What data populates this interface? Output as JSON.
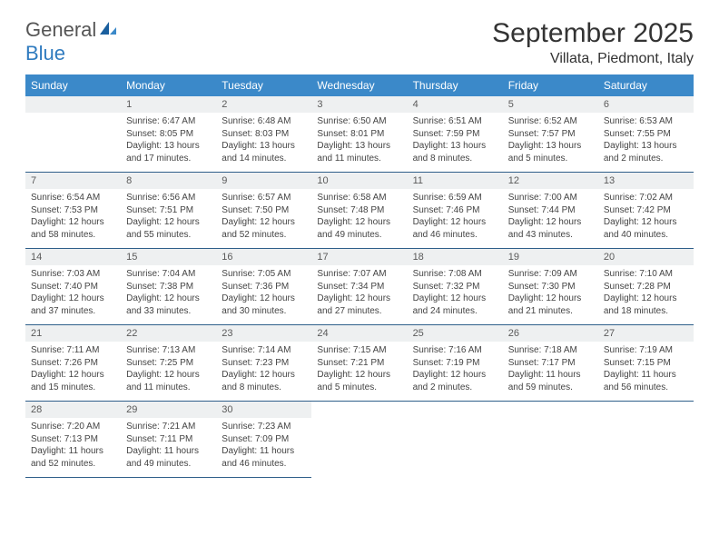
{
  "brand": {
    "part1": "General",
    "part2": "Blue"
  },
  "title": "September 2025",
  "location": "Villata, Piedmont, Italy",
  "theme": {
    "header_bg": "#3b89c9",
    "header_text": "#ffffff",
    "daynum_bg": "#eef0f1",
    "daynum_text": "#5a5a5a",
    "border_color": "#2f5f8a",
    "body_text": "#444444",
    "brand_gray": "#555555",
    "brand_blue": "#2f7bbf"
  },
  "weekdays": [
    "Sunday",
    "Monday",
    "Tuesday",
    "Wednesday",
    "Thursday",
    "Friday",
    "Saturday"
  ],
  "weeks": [
    [
      null,
      {
        "d": "1",
        "sr": "Sunrise: 6:47 AM",
        "ss": "Sunset: 8:05 PM",
        "dl": "Daylight: 13 hours and 17 minutes."
      },
      {
        "d": "2",
        "sr": "Sunrise: 6:48 AM",
        "ss": "Sunset: 8:03 PM",
        "dl": "Daylight: 13 hours and 14 minutes."
      },
      {
        "d": "3",
        "sr": "Sunrise: 6:50 AM",
        "ss": "Sunset: 8:01 PM",
        "dl": "Daylight: 13 hours and 11 minutes."
      },
      {
        "d": "4",
        "sr": "Sunrise: 6:51 AM",
        "ss": "Sunset: 7:59 PM",
        "dl": "Daylight: 13 hours and 8 minutes."
      },
      {
        "d": "5",
        "sr": "Sunrise: 6:52 AM",
        "ss": "Sunset: 7:57 PM",
        "dl": "Daylight: 13 hours and 5 minutes."
      },
      {
        "d": "6",
        "sr": "Sunrise: 6:53 AM",
        "ss": "Sunset: 7:55 PM",
        "dl": "Daylight: 13 hours and 2 minutes."
      }
    ],
    [
      {
        "d": "7",
        "sr": "Sunrise: 6:54 AM",
        "ss": "Sunset: 7:53 PM",
        "dl": "Daylight: 12 hours and 58 minutes."
      },
      {
        "d": "8",
        "sr": "Sunrise: 6:56 AM",
        "ss": "Sunset: 7:51 PM",
        "dl": "Daylight: 12 hours and 55 minutes."
      },
      {
        "d": "9",
        "sr": "Sunrise: 6:57 AM",
        "ss": "Sunset: 7:50 PM",
        "dl": "Daylight: 12 hours and 52 minutes."
      },
      {
        "d": "10",
        "sr": "Sunrise: 6:58 AM",
        "ss": "Sunset: 7:48 PM",
        "dl": "Daylight: 12 hours and 49 minutes."
      },
      {
        "d": "11",
        "sr": "Sunrise: 6:59 AM",
        "ss": "Sunset: 7:46 PM",
        "dl": "Daylight: 12 hours and 46 minutes."
      },
      {
        "d": "12",
        "sr": "Sunrise: 7:00 AM",
        "ss": "Sunset: 7:44 PM",
        "dl": "Daylight: 12 hours and 43 minutes."
      },
      {
        "d": "13",
        "sr": "Sunrise: 7:02 AM",
        "ss": "Sunset: 7:42 PM",
        "dl": "Daylight: 12 hours and 40 minutes."
      }
    ],
    [
      {
        "d": "14",
        "sr": "Sunrise: 7:03 AM",
        "ss": "Sunset: 7:40 PM",
        "dl": "Daylight: 12 hours and 37 minutes."
      },
      {
        "d": "15",
        "sr": "Sunrise: 7:04 AM",
        "ss": "Sunset: 7:38 PM",
        "dl": "Daylight: 12 hours and 33 minutes."
      },
      {
        "d": "16",
        "sr": "Sunrise: 7:05 AM",
        "ss": "Sunset: 7:36 PM",
        "dl": "Daylight: 12 hours and 30 minutes."
      },
      {
        "d": "17",
        "sr": "Sunrise: 7:07 AM",
        "ss": "Sunset: 7:34 PM",
        "dl": "Daylight: 12 hours and 27 minutes."
      },
      {
        "d": "18",
        "sr": "Sunrise: 7:08 AM",
        "ss": "Sunset: 7:32 PM",
        "dl": "Daylight: 12 hours and 24 minutes."
      },
      {
        "d": "19",
        "sr": "Sunrise: 7:09 AM",
        "ss": "Sunset: 7:30 PM",
        "dl": "Daylight: 12 hours and 21 minutes."
      },
      {
        "d": "20",
        "sr": "Sunrise: 7:10 AM",
        "ss": "Sunset: 7:28 PM",
        "dl": "Daylight: 12 hours and 18 minutes."
      }
    ],
    [
      {
        "d": "21",
        "sr": "Sunrise: 7:11 AM",
        "ss": "Sunset: 7:26 PM",
        "dl": "Daylight: 12 hours and 15 minutes."
      },
      {
        "d": "22",
        "sr": "Sunrise: 7:13 AM",
        "ss": "Sunset: 7:25 PM",
        "dl": "Daylight: 12 hours and 11 minutes."
      },
      {
        "d": "23",
        "sr": "Sunrise: 7:14 AM",
        "ss": "Sunset: 7:23 PM",
        "dl": "Daylight: 12 hours and 8 minutes."
      },
      {
        "d": "24",
        "sr": "Sunrise: 7:15 AM",
        "ss": "Sunset: 7:21 PM",
        "dl": "Daylight: 12 hours and 5 minutes."
      },
      {
        "d": "25",
        "sr": "Sunrise: 7:16 AM",
        "ss": "Sunset: 7:19 PM",
        "dl": "Daylight: 12 hours and 2 minutes."
      },
      {
        "d": "26",
        "sr": "Sunrise: 7:18 AM",
        "ss": "Sunset: 7:17 PM",
        "dl": "Daylight: 11 hours and 59 minutes."
      },
      {
        "d": "27",
        "sr": "Sunrise: 7:19 AM",
        "ss": "Sunset: 7:15 PM",
        "dl": "Daylight: 11 hours and 56 minutes."
      }
    ],
    [
      {
        "d": "28",
        "sr": "Sunrise: 7:20 AM",
        "ss": "Sunset: 7:13 PM",
        "dl": "Daylight: 11 hours and 52 minutes."
      },
      {
        "d": "29",
        "sr": "Sunrise: 7:21 AM",
        "ss": "Sunset: 7:11 PM",
        "dl": "Daylight: 11 hours and 49 minutes."
      },
      {
        "d": "30",
        "sr": "Sunrise: 7:23 AM",
        "ss": "Sunset: 7:09 PM",
        "dl": "Daylight: 11 hours and 46 minutes."
      },
      null,
      null,
      null,
      null
    ]
  ]
}
